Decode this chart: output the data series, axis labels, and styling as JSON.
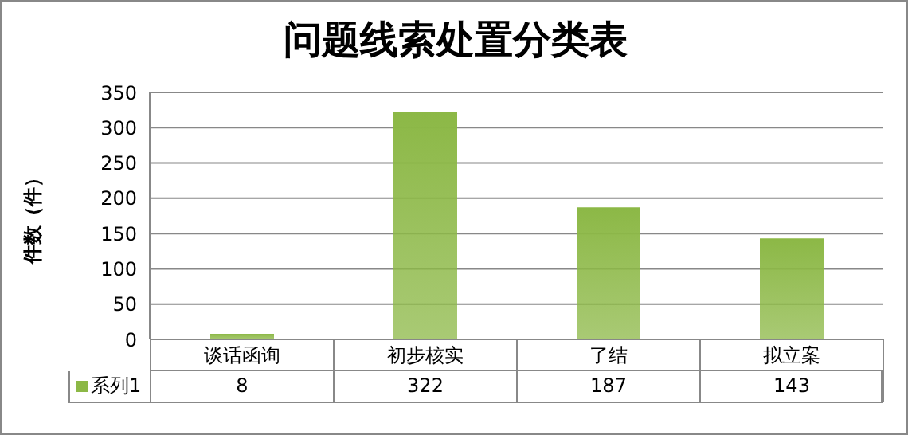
{
  "chart_data": {
    "type": "bar",
    "title": "问题线索处置分类表",
    "ylabel": "件数（件）",
    "categories": [
      "谈话函询",
      "初步核实",
      "了结",
      "拟立案"
    ],
    "series": [
      {
        "name": "系列1",
        "color": "#8cb846",
        "values": [
          8,
          322,
          187,
          143
        ]
      }
    ],
    "ylim": [
      0,
      350
    ],
    "yticks": [
      0,
      50,
      100,
      150,
      200,
      250,
      300,
      350
    ],
    "grid": "y",
    "legend": "bottom",
    "data_labels": true
  }
}
